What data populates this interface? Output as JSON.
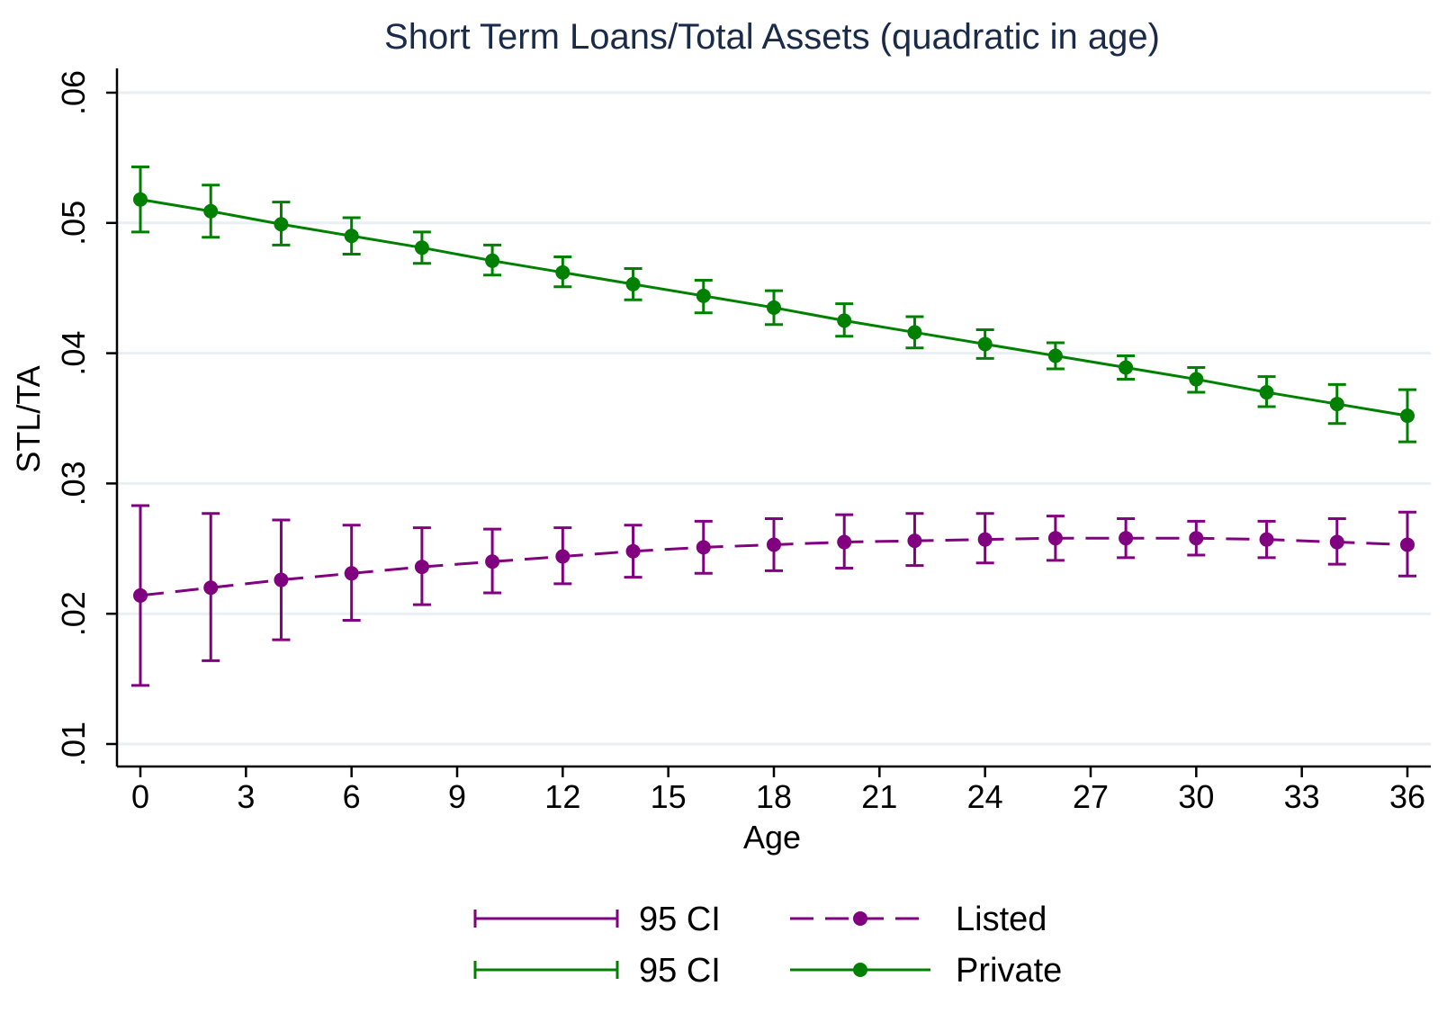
{
  "chart_data": {
    "type": "line",
    "title": "Short Term Loans/Total Assets (quadratic in age)",
    "xlabel": "Age",
    "ylabel": "STL/TA",
    "xlim": [
      0,
      36
    ],
    "ylim": [
      0.01,
      0.06
    ],
    "x_ticks": [
      0,
      3,
      6,
      9,
      12,
      15,
      18,
      21,
      24,
      27,
      30,
      33,
      36
    ],
    "x_tick_labels": [
      "0",
      "3",
      "6",
      "9",
      "12",
      "15",
      "18",
      "21",
      "24",
      "27",
      "30",
      "33",
      "36"
    ],
    "y_ticks": [
      0.01,
      0.02,
      0.03,
      0.04,
      0.05,
      0.06
    ],
    "y_tick_labels": [
      ".01",
      ".02",
      ".03",
      ".04",
      ".05",
      ".06"
    ],
    "grid": true,
    "legend_position": "bottom",
    "x": [
      0,
      2,
      4,
      6,
      8,
      10,
      12,
      14,
      16,
      18,
      20,
      22,
      24,
      26,
      28,
      30,
      32,
      34,
      36
    ],
    "series": [
      {
        "name": "Listed",
        "color": "#800080",
        "line_style": "dashed",
        "values": [
          0.0214,
          0.022,
          0.0226,
          0.0231,
          0.0236,
          0.024,
          0.0244,
          0.0248,
          0.0251,
          0.0253,
          0.0255,
          0.0256,
          0.0257,
          0.0258,
          0.0258,
          0.0258,
          0.0257,
          0.0255,
          0.0253
        ],
        "ci_lower": [
          0.0145,
          0.0164,
          0.018,
          0.0195,
          0.0207,
          0.0216,
          0.0223,
          0.0228,
          0.0231,
          0.0233,
          0.0235,
          0.0237,
          0.0239,
          0.0241,
          0.0243,
          0.0245,
          0.0243,
          0.0238,
          0.0229
        ],
        "ci_upper": [
          0.0283,
          0.0277,
          0.0272,
          0.0268,
          0.0266,
          0.0265,
          0.0266,
          0.0268,
          0.0271,
          0.0273,
          0.0276,
          0.0277,
          0.0277,
          0.0275,
          0.0273,
          0.0271,
          0.0271,
          0.0273,
          0.0278
        ],
        "ci_label": "95 CI"
      },
      {
        "name": "Private",
        "color": "#008000",
        "line_style": "solid",
        "values": [
          0.0518,
          0.0509,
          0.0499,
          0.049,
          0.0481,
          0.0471,
          0.0462,
          0.0453,
          0.0444,
          0.0435,
          0.0425,
          0.0416,
          0.0407,
          0.0398,
          0.0389,
          0.038,
          0.037,
          0.0361,
          0.0352
        ],
        "ci_lower": [
          0.0493,
          0.0489,
          0.0483,
          0.0476,
          0.0469,
          0.046,
          0.0451,
          0.0441,
          0.0431,
          0.0422,
          0.0413,
          0.0404,
          0.0396,
          0.0388,
          0.038,
          0.037,
          0.0359,
          0.0346,
          0.0332
        ],
        "ci_upper": [
          0.0543,
          0.0529,
          0.0516,
          0.0504,
          0.0493,
          0.0483,
          0.0474,
          0.0465,
          0.0456,
          0.0448,
          0.0438,
          0.0428,
          0.0418,
          0.0408,
          0.0398,
          0.0389,
          0.0382,
          0.0376,
          0.0372
        ],
        "ci_label": "95 CI"
      }
    ]
  }
}
